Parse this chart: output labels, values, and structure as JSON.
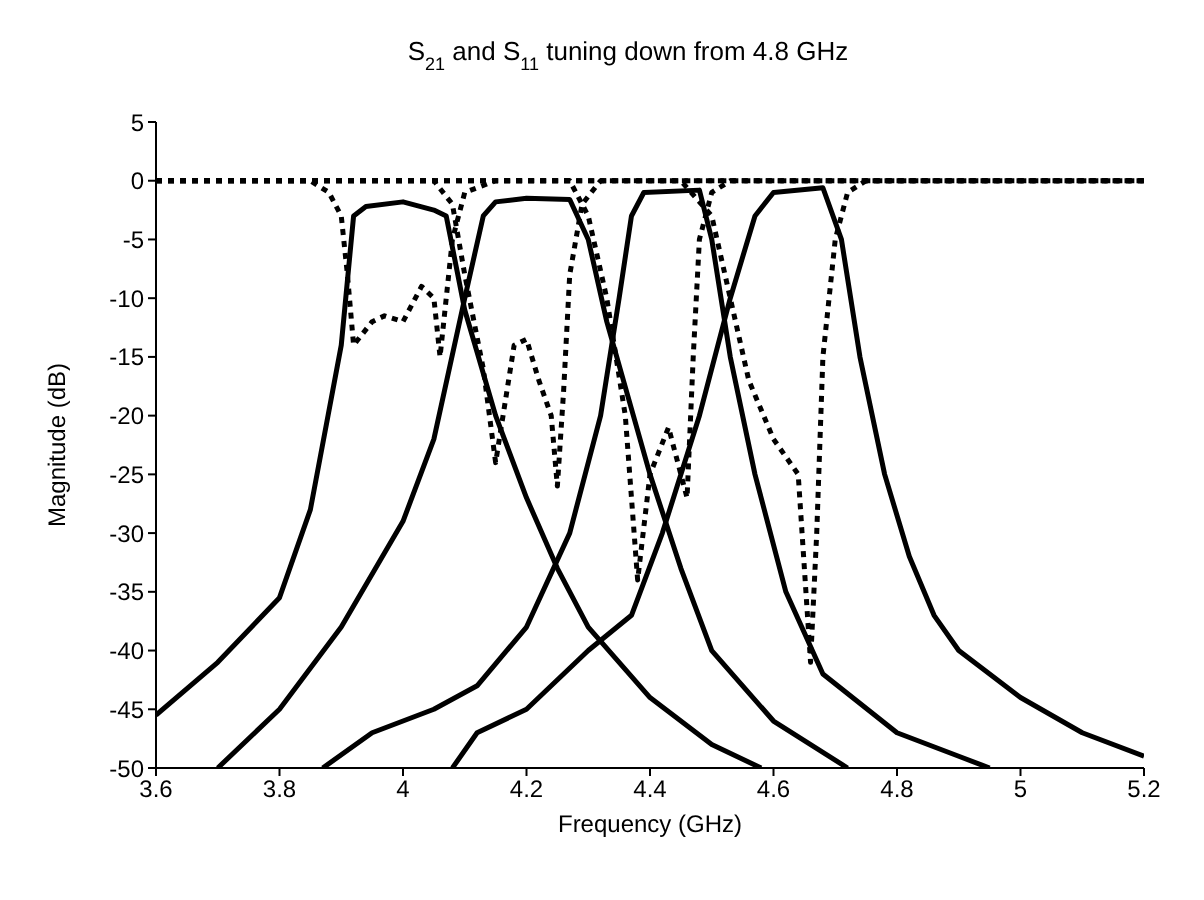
{
  "chart_data": {
    "type": "line",
    "title": "S$_{21}$ and S$_{11}$ tuning down from 4.8 GHz",
    "xlabel": "Frequency (GHz)",
    "ylabel": "Magnitude (dB)",
    "xlim": [
      3.6,
      5.2
    ],
    "ylim": [
      -50,
      5
    ],
    "xticks": [
      3.6,
      3.8,
      4,
      4.2,
      4.4,
      4.6,
      4.8,
      5,
      5.2
    ],
    "yticks": [
      -50,
      -45,
      -40,
      -35,
      -30,
      -25,
      -20,
      -15,
      -10,
      -5,
      0,
      5
    ],
    "grid": false,
    "legend": false,
    "marker": "none",
    "series": [
      {
        "color": "#000000",
        "line_style": "solid",
        "x": [
          3.6,
          3.7,
          3.8,
          3.85,
          3.9,
          3.92,
          3.94,
          4.0,
          4.05,
          4.07,
          4.1,
          4.15,
          4.2,
          4.25,
          4.3,
          4.4,
          4.5,
          4.58
        ],
        "values": [
          -45.5,
          -41,
          -35.5,
          -28,
          -14,
          -3,
          -2.2,
          -1.8,
          -2.5,
          -3,
          -11,
          -20,
          -27,
          -33,
          -38,
          -44,
          -48,
          -50
        ]
      },
      {
        "color": "#000000",
        "line_style": "solid",
        "x": [
          3.7,
          3.8,
          3.9,
          4.0,
          4.05,
          4.1,
          4.13,
          4.15,
          4.2,
          4.27,
          4.3,
          4.33,
          4.4,
          4.45,
          4.5,
          4.6,
          4.72
        ],
        "values": [
          -50,
          -45,
          -38,
          -29,
          -22,
          -10,
          -3,
          -1.8,
          -1.5,
          -1.6,
          -5,
          -12,
          -25,
          -33,
          -40,
          -46,
          -50
        ]
      },
      {
        "color": "#000000",
        "line_style": "solid",
        "x": [
          3.87,
          3.95,
          4.05,
          4.12,
          4.2,
          4.27,
          4.32,
          4.35,
          4.37,
          4.39,
          4.48,
          4.5,
          4.53,
          4.57,
          4.62,
          4.68,
          4.8,
          4.9,
          4.95
        ],
        "values": [
          -50,
          -47,
          -45,
          -43,
          -38,
          -30,
          -20,
          -10,
          -3,
          -1,
          -0.8,
          -5,
          -15,
          -25,
          -35,
          -42,
          -47,
          -49,
          -50
        ]
      },
      {
        "color": "#000000",
        "line_style": "solid",
        "x": [
          4.08,
          4.12,
          4.2,
          4.3,
          4.37,
          4.42,
          4.48,
          4.53,
          4.57,
          4.6,
          4.68,
          4.71,
          4.74,
          4.78,
          4.82,
          4.86,
          4.9,
          5.0,
          5.1,
          5.2
        ],
        "values": [
          -50,
          -47,
          -45,
          -40,
          -37,
          -30,
          -20,
          -10,
          -3,
          -1,
          -0.6,
          -5,
          -15,
          -25,
          -32,
          -37,
          -40,
          -44,
          -47,
          -49
        ]
      },
      {
        "color": "#000000",
        "line_style": "dotted",
        "x": [
          3.6,
          3.85,
          3.88,
          3.9,
          3.91,
          3.92,
          3.95,
          3.97,
          4.0,
          4.03,
          4.05,
          4.06,
          4.07,
          4.08,
          4.1,
          4.15,
          5.2
        ],
        "values": [
          0,
          0,
          -1,
          -3,
          -8,
          -14,
          -12,
          -11.5,
          -12,
          -9,
          -10,
          -15,
          -10,
          -5,
          -1,
          0,
          0
        ]
      },
      {
        "color": "#000000",
        "line_style": "dotted",
        "x": [
          3.6,
          4.05,
          4.08,
          4.1,
          4.13,
          4.15,
          4.18,
          4.2,
          4.22,
          4.24,
          4.25,
          4.26,
          4.27,
          4.29,
          4.32,
          5.2
        ],
        "values": [
          0,
          0,
          -2,
          -8,
          -16,
          -24,
          -14,
          -13.5,
          -17,
          -20,
          -26,
          -18,
          -8,
          -2,
          0,
          0
        ]
      },
      {
        "color": "#000000",
        "line_style": "dotted",
        "x": [
          3.6,
          4.27,
          4.3,
          4.33,
          4.36,
          4.38,
          4.4,
          4.43,
          4.45,
          4.46,
          4.47,
          4.48,
          4.5,
          4.53,
          5.2
        ],
        "values": [
          0,
          0,
          -3,
          -10,
          -20,
          -34,
          -25,
          -21,
          -25,
          -27,
          -15,
          -5,
          -1,
          0,
          0
        ]
      },
      {
        "color": "#000000",
        "line_style": "dotted",
        "x": [
          3.6,
          4.45,
          4.5,
          4.53,
          4.56,
          4.6,
          4.64,
          4.66,
          4.67,
          4.68,
          4.7,
          4.72,
          4.75,
          5.2
        ],
        "values": [
          0,
          0,
          -3,
          -10,
          -17,
          -22,
          -25,
          -41,
          -30,
          -15,
          -5,
          -1,
          0,
          0
        ]
      }
    ]
  }
}
